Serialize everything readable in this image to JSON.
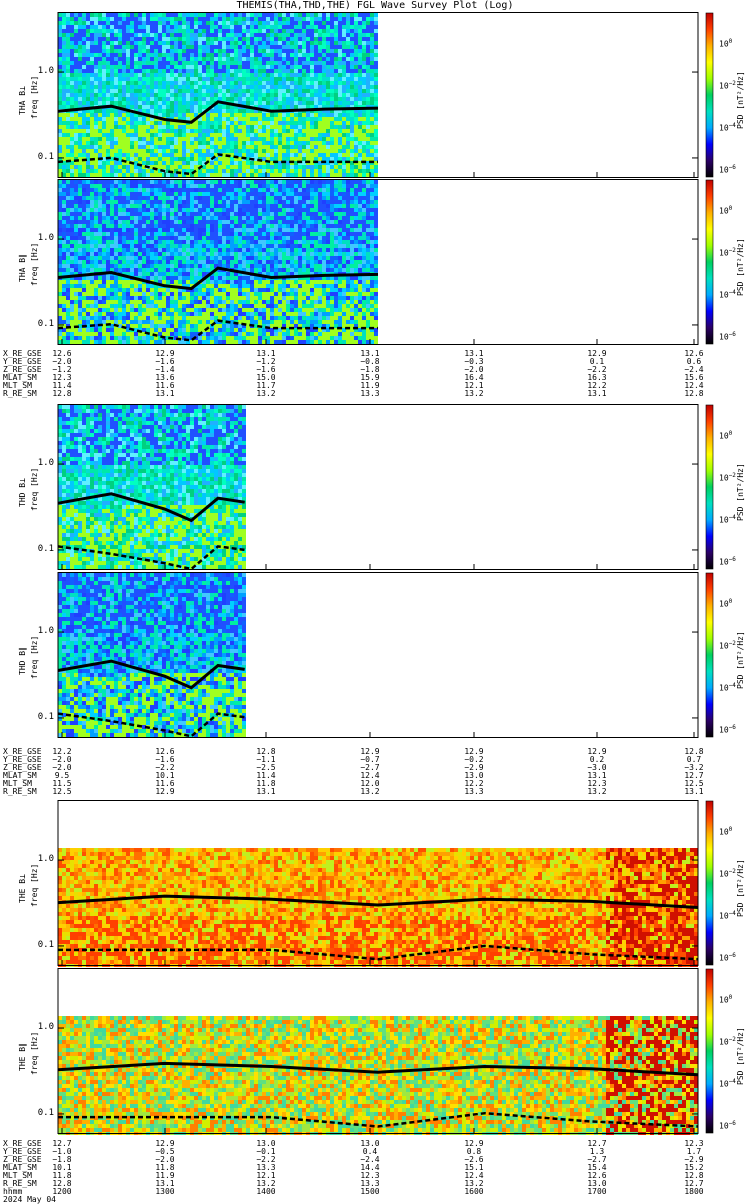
{
  "title": "THEMIS(THA,THD,THE) FGL Wave Survey Plot (Log)",
  "colors": {
    "mean_line": "#000000",
    "colorbar_stops": [
      "#000000",
      "#2b0066",
      "#0000ff",
      "#00aaff",
      "#00e0c0",
      "#00d060",
      "#a0ff00",
      "#ffff00",
      "#ffb000",
      "#ff4000",
      "#c00000"
    ]
  },
  "panels": [
    {
      "id": "tha-bl",
      "ylabel_probe": "THA B⊥",
      "ylabel_freq": "freq [Hz]",
      "yticks": [
        "1.0",
        "0.1"
      ],
      "cbar_label": "PSD [nT²/Hz]",
      "cbar_ticks": [
        {
          "b": "10",
          "e": "0"
        },
        {
          "b": "10",
          "e": "−2"
        },
        {
          "b": "10",
          "e": "−4"
        },
        {
          "b": "10",
          "e": "−6"
        }
      ],
      "palette": "cool",
      "data_fraction": 0.5
    },
    {
      "id": "tha-bpar",
      "ylabel_probe": "THA B∥",
      "ylabel_freq": "freq [Hz]",
      "yticks": [
        "1.0",
        "0.1"
      ],
      "cbar_label": "PSD [nT²/Hz]",
      "cbar_ticks": [
        {
          "b": "10",
          "e": "0"
        },
        {
          "b": "10",
          "e": "−2"
        },
        {
          "b": "10",
          "e": "−4"
        },
        {
          "b": "10",
          "e": "−6"
        }
      ],
      "palette": "cooler",
      "data_fraction": 0.5
    },
    {
      "id": "thd-bl",
      "ylabel_probe": "THD B⊥",
      "ylabel_freq": "freq [Hz]",
      "yticks": [
        "1.0",
        "0.1"
      ],
      "cbar_label": "PSD [nT²/Hz]",
      "cbar_ticks": [
        {
          "b": "10",
          "e": "0"
        },
        {
          "b": "10",
          "e": "−2"
        },
        {
          "b": "10",
          "e": "−4"
        },
        {
          "b": "10",
          "e": "−6"
        }
      ],
      "palette": "cool",
      "data_fraction": 0.29
    },
    {
      "id": "thd-bpar",
      "ylabel_probe": "THD B∥",
      "ylabel_freq": "freq [Hz]",
      "yticks": [
        "1.0",
        "0.1"
      ],
      "cbar_label": "PSD [nT²/Hz]",
      "cbar_ticks": [
        {
          "b": "10",
          "e": "0"
        },
        {
          "b": "10",
          "e": "−2"
        },
        {
          "b": "10",
          "e": "−4"
        },
        {
          "b": "10",
          "e": "−6"
        }
      ],
      "palette": "cooler",
      "data_fraction": 0.29
    },
    {
      "id": "the-bl",
      "ylabel_probe": "THE B⊥",
      "ylabel_freq": "freq [Hz]",
      "yticks": [
        "1.0",
        "0.1"
      ],
      "cbar_label": "PSD [nT²/Hz]",
      "cbar_ticks": [
        {
          "b": "10",
          "e": "0"
        },
        {
          "b": "10",
          "e": "−2"
        },
        {
          "b": "10",
          "e": "−4"
        },
        {
          "b": "10",
          "e": "−6"
        }
      ],
      "palette": "warm",
      "data_fraction": 1.0
    },
    {
      "id": "the-bpar",
      "ylabel_probe": "THE B∥",
      "ylabel_freq": "freq [Hz]",
      "yticks": [
        "1.0",
        "0.1"
      ],
      "cbar_label": "PSD [nT²/Hz]",
      "cbar_ticks": [
        {
          "b": "10",
          "e": "0"
        },
        {
          "b": "10",
          "e": "−2"
        },
        {
          "b": "10",
          "e": "−4"
        },
        {
          "b": "10",
          "e": "−6"
        }
      ],
      "palette": "mixed",
      "data_fraction": 1.0
    }
  ],
  "ephemeris": [
    {
      "rows": [
        {
          "name": "X_RE_GSE",
          "values": [
            "12.6",
            "12.9",
            "13.1",
            "13.1",
            "13.1",
            "12.9",
            "12.6"
          ]
        },
        {
          "name": "Y_RE_GSE",
          "values": [
            "−2.0",
            "−1.6",
            "−1.2",
            "−0.8",
            "−0.3",
            "0.1",
            "0.6"
          ]
        },
        {
          "name": "Z_RE_GSE",
          "values": [
            "−1.2",
            "−1.4",
            "−1.6",
            "−1.8",
            "−2.0",
            "−2.2",
            "−2.4"
          ]
        },
        {
          "name": "MLAT_SM",
          "values": [
            "12.3",
            "13.6",
            "15.0",
            "15.9",
            "16.4",
            "16.3",
            "15.6"
          ]
        },
        {
          "name": "MLT_SM",
          "values": [
            "11.4",
            "11.6",
            "11.7",
            "11.9",
            "12.1",
            "12.2",
            "12.4"
          ]
        },
        {
          "name": "R_RE_SM",
          "values": [
            "12.8",
            "13.1",
            "13.2",
            "13.3",
            "13.2",
            "13.1",
            "12.8"
          ]
        }
      ]
    },
    {
      "rows": [
        {
          "name": "X_RE_GSE",
          "values": [
            "12.2",
            "12.6",
            "12.8",
            "12.9",
            "12.9",
            "12.9",
            "12.8"
          ]
        },
        {
          "name": "Y_RE_GSE",
          "values": [
            "−2.0",
            "−1.6",
            "−1.1",
            "−0.7",
            "−0.2",
            "0.2",
            "0.7"
          ]
        },
        {
          "name": "Z_RE_GSE",
          "values": [
            "−2.0",
            "−2.2",
            "−2.5",
            "−2.7",
            "−2.9",
            "−3.0",
            "−3.2"
          ]
        },
        {
          "name": "MLAT_SM",
          "values": [
            "9.5",
            "10.1",
            "11.4",
            "12.4",
            "13.0",
            "13.1",
            "12.7"
          ]
        },
        {
          "name": "MLT_SM",
          "values": [
            "11.5",
            "11.6",
            "11.8",
            "12.0",
            "12.2",
            "12.3",
            "12.5"
          ]
        },
        {
          "name": "R_RE_SM",
          "values": [
            "12.5",
            "12.9",
            "13.1",
            "13.2",
            "13.3",
            "13.2",
            "13.1"
          ]
        }
      ]
    },
    {
      "rows": [
        {
          "name": "X_RE_GSE",
          "values": [
            "12.7",
            "12.9",
            "13.0",
            "13.0",
            "12.9",
            "12.7",
            "12.3"
          ]
        },
        {
          "name": "Y_RE_GSE",
          "values": [
            "−1.0",
            "−0.5",
            "−0.1",
            "0.4",
            "0.8",
            "1.3",
            "1.7"
          ]
        },
        {
          "name": "Z_RE_GSE",
          "values": [
            "−1.8",
            "−2.0",
            "−2.2",
            "−2.4",
            "−2.6",
            "−2.7",
            "−2.9"
          ]
        },
        {
          "name": "MLAT_SM",
          "values": [
            "10.1",
            "11.8",
            "13.3",
            "14.4",
            "15.1",
            "15.4",
            "15.2"
          ]
        },
        {
          "name": "MLT_SM",
          "values": [
            "11.8",
            "11.9",
            "12.1",
            "12.3",
            "12.4",
            "12.6",
            "12.8"
          ]
        },
        {
          "name": "R_RE_SM",
          "values": [
            "12.8",
            "13.1",
            "13.2",
            "13.3",
            "13.2",
            "13.0",
            "12.7"
          ]
        },
        {
          "name": "hhmm",
          "values": [
            "1200",
            "1300",
            "1400",
            "1500",
            "1600",
            "1700",
            "1800"
          ]
        },
        {
          "name": "2024 May 04",
          "values": [
            "",
            "",
            "",
            "",
            "",
            "",
            ""
          ]
        }
      ]
    }
  ],
  "chart_data": [
    {
      "type": "heatmap",
      "title": "THEMIS(THA,THD,THE) FGL Wave Survey Plot (Log)",
      "x": [
        "1200",
        "1300",
        "1400",
        "1500",
        "1600",
        "1700",
        "1800"
      ],
      "xlabel": "hhmm",
      "ylabel": "freq [Hz]",
      "ylim": [
        0.06,
        5.0
      ],
      "yscale": "log",
      "colorbar": {
        "label": "PSD [nT²/Hz]",
        "range_exponent": [
          -7,
          1
        ],
        "ticks": [
          0,
          -2,
          -4,
          -6
        ]
      },
      "panels": [
        "THA B⊥",
        "THA B∥",
        "THD B⊥",
        "THD B∥",
        "THE B⊥",
        "THE B∥"
      ],
      "data_extent_hhmm": {
        "THA": [
          "1200",
          "1500"
        ],
        "THD": [
          "1200",
          "1345"
        ],
        "THE": [
          "1200",
          "1800"
        ]
      },
      "series": [
        {
          "name": "THA B⊥ upper line (Hz)",
          "x": [
            "1200",
            "1230",
            "1300",
            "1315",
            "1330",
            "1400",
            "1430",
            "1500"
          ],
          "values": [
            0.35,
            0.4,
            0.28,
            0.26,
            0.45,
            0.35,
            0.37,
            0.38
          ]
        },
        {
          "name": "THA B⊥ lower line (Hz)",
          "x": [
            "1200",
            "1230",
            "1300",
            "1315",
            "1330",
            "1400",
            "1430",
            "1500"
          ],
          "values": [
            0.09,
            0.1,
            0.07,
            0.065,
            0.11,
            0.09,
            0.09,
            0.09
          ]
        },
        {
          "name": "THD B⊥ upper line (Hz)",
          "x": [
            "1200",
            "1230",
            "1300",
            "1315",
            "1330",
            "1345"
          ],
          "values": [
            0.35,
            0.45,
            0.3,
            0.22,
            0.4,
            0.36
          ]
        },
        {
          "name": "THD B⊥ lower line (Hz)",
          "x": [
            "1200",
            "1230",
            "1300",
            "1315",
            "1330",
            "1345"
          ],
          "values": [
            0.11,
            0.09,
            0.07,
            0.06,
            0.11,
            0.1
          ]
        },
        {
          "name": "THE B⊥ upper line (Hz)",
          "x": [
            "1200",
            "1300",
            "1400",
            "1500",
            "1600",
            "1700",
            "1800"
          ],
          "values": [
            0.32,
            0.38,
            0.35,
            0.3,
            0.35,
            0.33,
            0.28
          ]
        },
        {
          "name": "THE B⊥ lower line (Hz)",
          "x": [
            "1200",
            "1300",
            "1400",
            "1500",
            "1600",
            "1700",
            "1800"
          ],
          "values": [
            0.09,
            0.09,
            0.09,
            0.07,
            0.1,
            0.08,
            0.07
          ]
        }
      ]
    }
  ]
}
